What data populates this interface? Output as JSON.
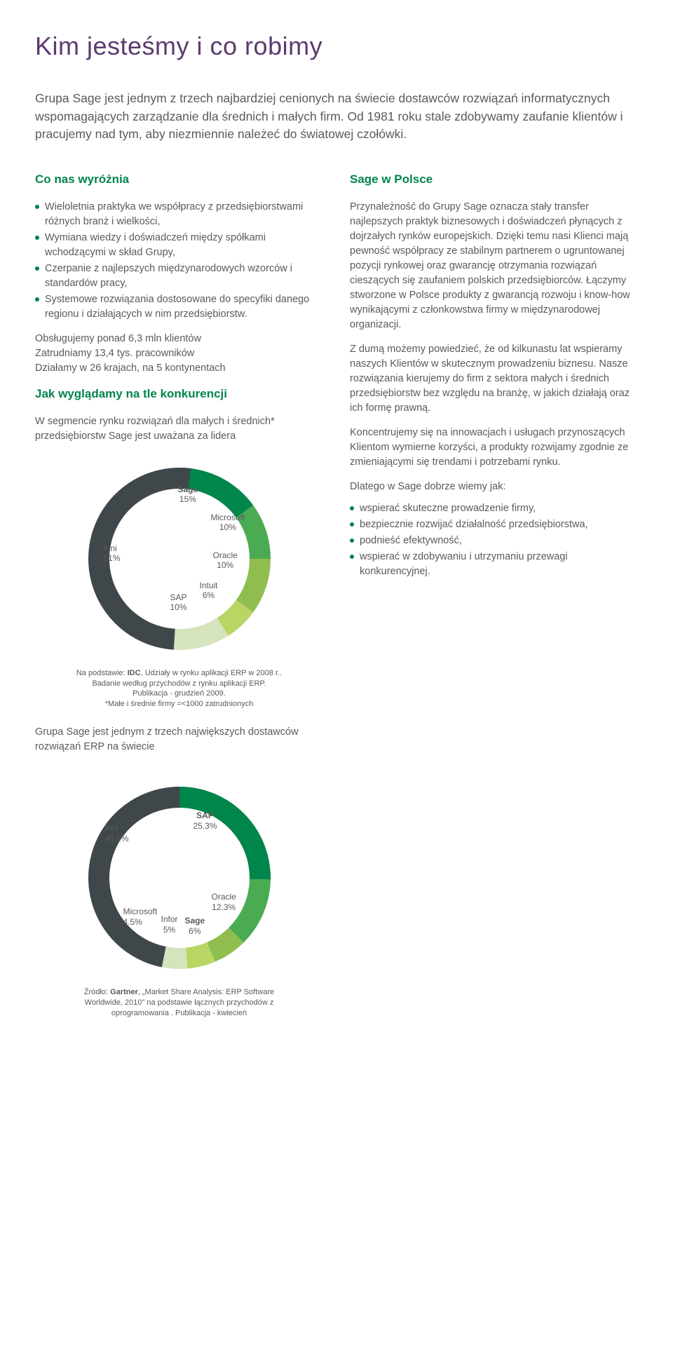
{
  "title": "Kim jesteśmy i co robimy",
  "intro": "Grupa Sage jest jednym z trzech najbardziej cenionych na świecie dostawców rozwiązań informatycznych wspomagających zarządzanie dla średnich i małych firm. Od 1981 roku stale zdobywamy zaufanie klientów i pracujemy nad tym, aby niezmiennie należeć do światowej czołówki.",
  "left": {
    "h_diff": "Co nas wyróżnia",
    "bullets_diff": [
      "Wieloletnia praktyka we współpracy z przedsiębiorstwami różnych branż i wielkości,",
      "Wymiana wiedzy i doświadczeń między spółkami wchodzącymi w skład Grupy,",
      "Czerpanie z najlepszych międzynarodowych wzorców i standardów pracy,",
      "Systemowe rozwiązania dostosowane do specyfiki danego regionu i działających w nim przedsiębiorstw."
    ],
    "stats": "Obsługujemy ponad 6,3 mln klientów\nZatrudniamy 13,4 tys. pracowników\nDziałamy w 26 krajach, na 5 kontynentach",
    "h_competition": "Jak wyglądamy na tle konkurencji",
    "competition_intro": "W segmencie rynku rozwiązań dla małych i średnich* przedsiębiorstw Sage jest uważana za lidera",
    "chart1": {
      "type": "donut",
      "thickness": 30,
      "radius_outer": 130,
      "bg": "#ffffff",
      "ring_shadow": "#d4d4d4",
      "segments": [
        {
          "label": "Sage",
          "pct": 15,
          "color": "#00854a"
        },
        {
          "label": "Microsoft",
          "pct": 10,
          "color": "#4aab52"
        },
        {
          "label": "Oracle",
          "pct": 10,
          "color": "#8fbe4f"
        },
        {
          "label": "Intuit",
          "pct": 6,
          "color": "#b9d564"
        },
        {
          "label": "SAP",
          "pct": 10,
          "color": "#d6e4bd"
        },
        {
          "label": "Inni",
          "pct": 51,
          "color": "#40474b"
        }
      ],
      "label_font_size": 12,
      "caption_prefix": "Na podstawie: ",
      "caption_bold": "IDC",
      "caption_rest": ", Udziały w rynku aplikacji ERP w 2008 r.. Badanie według przychodów z rynku aplikacji ERP. Publikacja - grudzień 2009.",
      "caption_note": "*Małe i średnie firmy =<1000 zatrudnionych"
    },
    "after_chart1": "Grupa Sage jest jednym z trzech największych dostawców rozwiązań ERP na świecie",
    "chart2": {
      "type": "donut",
      "thickness": 30,
      "radius_outer": 130,
      "segments": [
        {
          "label": "SAP",
          "pct": 25.3,
          "color": "#00854a"
        },
        {
          "label": "Oracle",
          "pct": 12.3,
          "color": "#4aab52"
        },
        {
          "label": "Sage",
          "pct": 6.0,
          "color": "#8fbe4f"
        },
        {
          "label": "Infor",
          "pct": 5.0,
          "color": "#b9d564"
        },
        {
          "label": "Microsoft",
          "pct": 4.5,
          "color": "#d6e4bd"
        },
        {
          "label": "Inni",
          "pct": 46.9,
          "color": "#40474b"
        }
      ],
      "label_font_size": 12,
      "caption_prefix": "Źródło: ",
      "caption_bold": "Gartner",
      "caption_rest": ", „Market Share Analysis: ERP Software Worldwide, 2010\" na podstawie łącznych przychodów z oprogramowania . Publikacja - kwiecień"
    }
  },
  "right": {
    "h": "Sage w Polsce",
    "p1": "Przynależność do Grupy Sage oznacza stały transfer najlepszych praktyk biznesowych i doświadczeń płynących z dojrzałych rynków europejskich. Dzięki temu nasi Klienci mają pewność współpracy ze stabilnym partnerem o ugruntowanej pozycji rynkowej oraz gwarancję otrzymania rozwiązań cieszących się zaufaniem polskich przedsiębiorców. Łączymy stworzone w Polsce produkty z gwarancją rozwoju i know-how wynikającymi z członkowstwa firmy w międzynarodowej organizacji.",
    "p2": "Z dumą możemy powiedzieć, że od kilkunastu lat wspieramy naszych Klientów w skutecznym prowadzeniu biznesu. Nasze rozwiązania kierujemy do firm z sektora małych i średnich przedsiębiorstw bez względu na branżę, w jakich działają oraz ich formę prawną.",
    "p3": "Koncentrujemy się na innowacjach i usługach przynoszących Klientom wymierne korzyści, a produkty rozwijamy zgodnie ze zmieniającymi się trendami i potrzebami rynku.",
    "lead": "Dlatego w Sage dobrze wiemy jak:",
    "bullets": [
      "wspierać skuteczne prowadzenie firmy,",
      "bezpiecznie rozwijać działalność przedsiębiorstwa,",
      "podnieść efektywność,",
      "wspierać w zdobywaniu i utrzymaniu przewagi konkurencyjnej."
    ]
  }
}
